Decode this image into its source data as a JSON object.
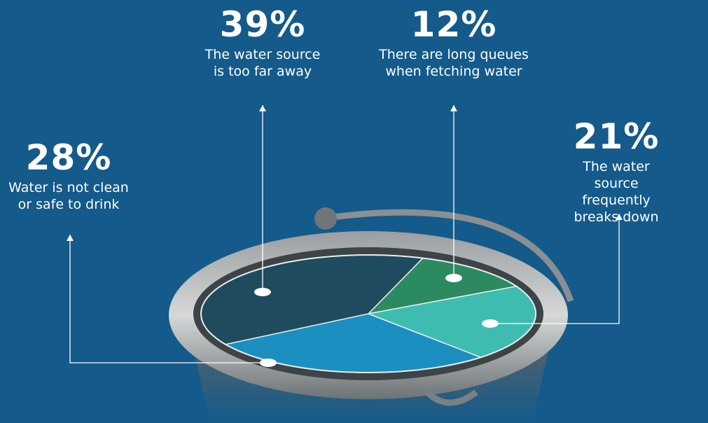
{
  "chart_data": {
    "type": "pie",
    "categories": [
      "There are long queues\nwhen fetching water",
      "The water source\nfrequently breaks down",
      "Water is not clean\nor safe to drink",
      "The water source\nis too far away"
    ],
    "values": [
      12,
      21,
      28,
      39
    ],
    "value_labels": [
      "12%",
      "21%",
      "28%",
      "39%"
    ],
    "colors": [
      "#2b8a60",
      "#3fbcb0",
      "#1b8fc0",
      "#1e4b5e"
    ]
  }
}
